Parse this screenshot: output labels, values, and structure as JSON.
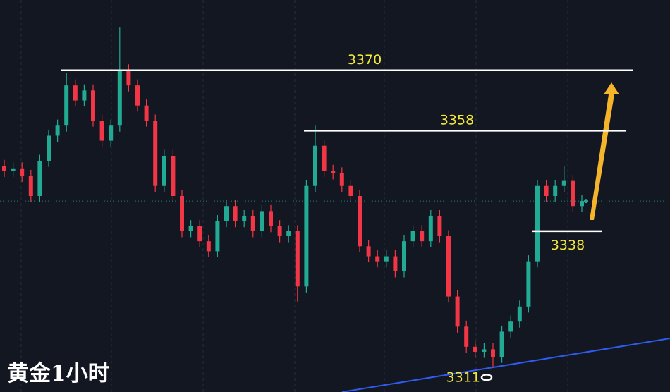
{
  "chart_data": {
    "type": "candlestick",
    "title": "黄金1小时",
    "ylim": [
      3306,
      3384
    ],
    "up_color": "#22ab94",
    "down_color": "#f23645",
    "levels": [
      3370,
      3358,
      3338,
      3311
    ],
    "open": [
      3351,
      3350,
      3350.5,
      3349,
      3345,
      3352,
      3357,
      3359,
      3367,
      3364,
      3366,
      3360,
      3356,
      3359,
      3370,
      3367,
      3363,
      3360,
      3347,
      3353,
      3345,
      3338,
      3339,
      3336,
      3334,
      3340,
      3343,
      3340,
      3341,
      3338,
      3342,
      3339,
      3337,
      3338,
      3327,
      3347,
      3355,
      3350,
      3349.5,
      3347,
      3345,
      3335,
      3333,
      3332,
      3333,
      3330,
      3336,
      3338,
      3336,
      3341,
      3337,
      3325,
      3319,
      3315,
      3314,
      3314.5,
      3313,
      3318,
      3320,
      3323,
      3332,
      3347,
      3345,
      3347,
      3348,
      3343
    ],
    "high": [
      3352.2,
      3351.7,
      3351.7,
      3350.2,
      3353.2,
      3358.2,
      3360.2,
      3369.5,
      3368.2,
      3367.2,
      3367.2,
      3361.2,
      3360.2,
      3378.5,
      3371.2,
      3368.2,
      3364.2,
      3361.2,
      3354.2,
      3354.2,
      3346.2,
      3340.2,
      3340.2,
      3337.2,
      3341.2,
      3344.2,
      3344.2,
      3342.2,
      3342.2,
      3343.2,
      3343.2,
      3340.2,
      3339.2,
      3339.2,
      3348.2,
      3359,
      3356.2,
      3351.2,
      3350.7,
      3348.2,
      3346.2,
      3336.2,
      3334.2,
      3334.2,
      3334.2,
      3337.2,
      3339.2,
      3339.2,
      3342.2,
      3342.2,
      3338.2,
      3326.2,
      3320.2,
      3316.2,
      3315.7,
      3315.7,
      3319.2,
      3321.2,
      3324.2,
      3333.2,
      3348.2,
      3348.2,
      3348.2,
      3351,
      3349.2,
      3345.2
    ],
    "low": [
      3348.8,
      3348.8,
      3347.8,
      3343.8,
      3343.8,
      3350.8,
      3355.8,
      3357.8,
      3362.8,
      3362.8,
      3358.8,
      3354.8,
      3354.8,
      3357.8,
      3365.8,
      3361.8,
      3358.8,
      3345.8,
      3345.8,
      3343.8,
      3336.8,
      3336.8,
      3334.8,
      3332.8,
      3332.8,
      3338.8,
      3338.8,
      3338.8,
      3336.8,
      3336.8,
      3337.8,
      3335.8,
      3335.8,
      3324,
      3325.8,
      3345.8,
      3348.8,
      3348.3,
      3345.8,
      3343.8,
      3333.8,
      3331.8,
      3330.8,
      3330.8,
      3328.8,
      3328.8,
      3334.8,
      3334.8,
      3334.8,
      3335.8,
      3323.8,
      3317.8,
      3313.8,
      3312.8,
      3312.8,
      3311,
      3311.8,
      3316.8,
      3318.8,
      3321.8,
      3330.8,
      3343.8,
      3343.8,
      3345.8,
      3341.8,
      3341.8
    ],
    "close": [
      3350,
      3350.5,
      3349,
      3345,
      3352,
      3357,
      3359,
      3367,
      3364,
      3366,
      3360,
      3356,
      3359,
      3370,
      3367,
      3363,
      3360,
      3347,
      3353,
      3345,
      3338,
      3339,
      3336,
      3334,
      3340,
      3343,
      3340,
      3341,
      3338,
      3342,
      3339,
      3337,
      3338,
      3327,
      3347,
      3355,
      3350,
      3349.5,
      3347,
      3345,
      3335,
      3333,
      3332,
      3333,
      3330,
      3336,
      3338,
      3336,
      3341,
      3337,
      3325,
      3319,
      3315,
      3314,
      3314.5,
      3313,
      3318,
      3320,
      3323,
      3332,
      3347,
      3345,
      3347,
      3348,
      3343,
      3344
    ]
  }
}
